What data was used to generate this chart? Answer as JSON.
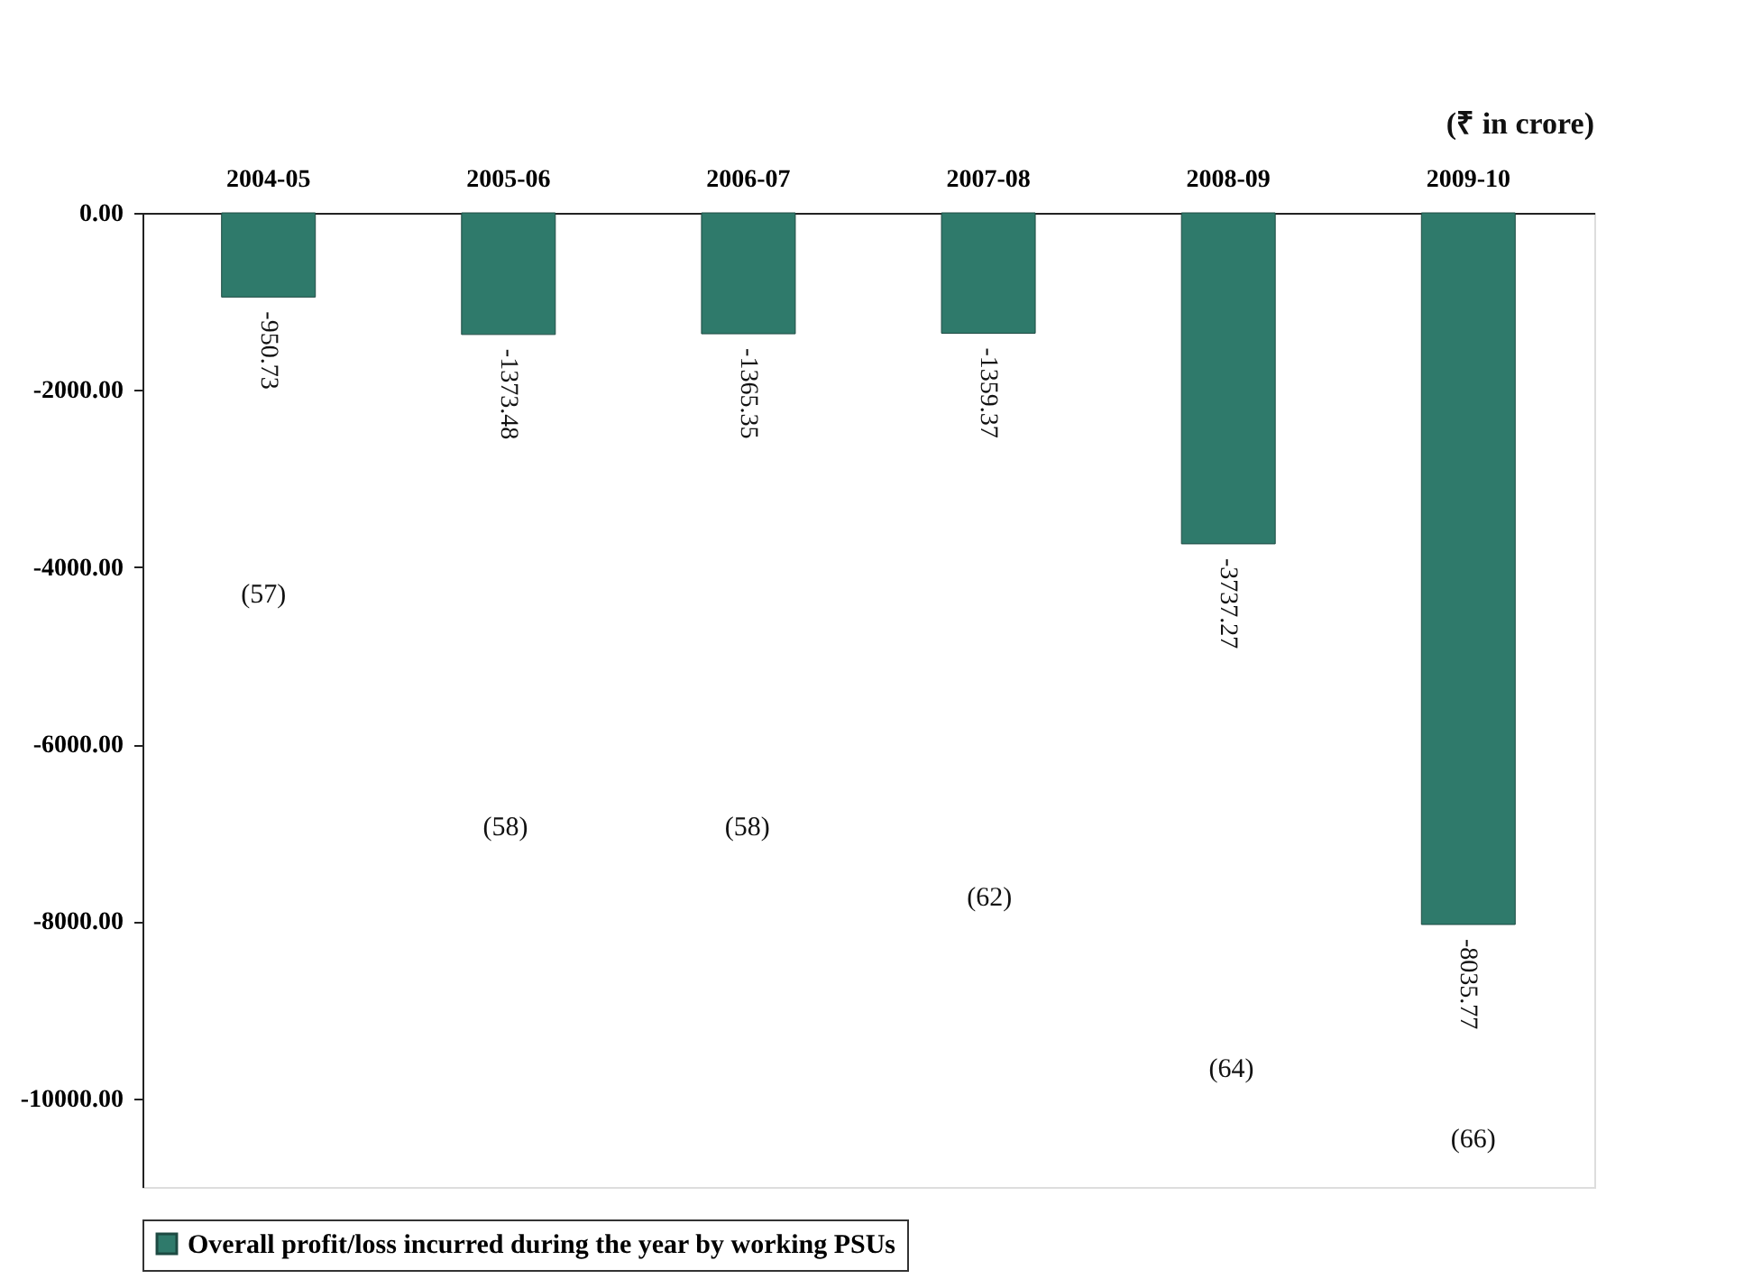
{
  "chart_data": {
    "type": "bar",
    "categories": [
      "2004-05",
      "2005-06",
      "2006-07",
      "2007-08",
      "2008-09",
      "2009-10"
    ],
    "series": [
      {
        "name": "Overall profit/loss incurred during the year by working PSUs",
        "color": "#2f7a6b",
        "values": [
          -950.73,
          -1373.48,
          -1365.35,
          -1359.37,
          -3737.27,
          -8035.77
        ]
      }
    ],
    "data_labels": true,
    "ylim": [
      -11000,
      0
    ],
    "yticks": [
      {
        "value": 0,
        "label": "0.00"
      },
      {
        "value": -2000,
        "label": "-2000.00"
      },
      {
        "value": -4000,
        "label": "-4000.00"
      },
      {
        "value": -6000,
        "label": "-6000.00"
      },
      {
        "value": -8000,
        "label": "-8000.00"
      },
      {
        "value": -10000,
        "label": "-10000.00"
      }
    ],
    "annotations": [
      "(₹ in crore)",
      "(57)",
      "(58)",
      "(58)",
      "(62)",
      "(64)",
      "(66)"
    ],
    "grid": false,
    "legend": "bottom"
  }
}
